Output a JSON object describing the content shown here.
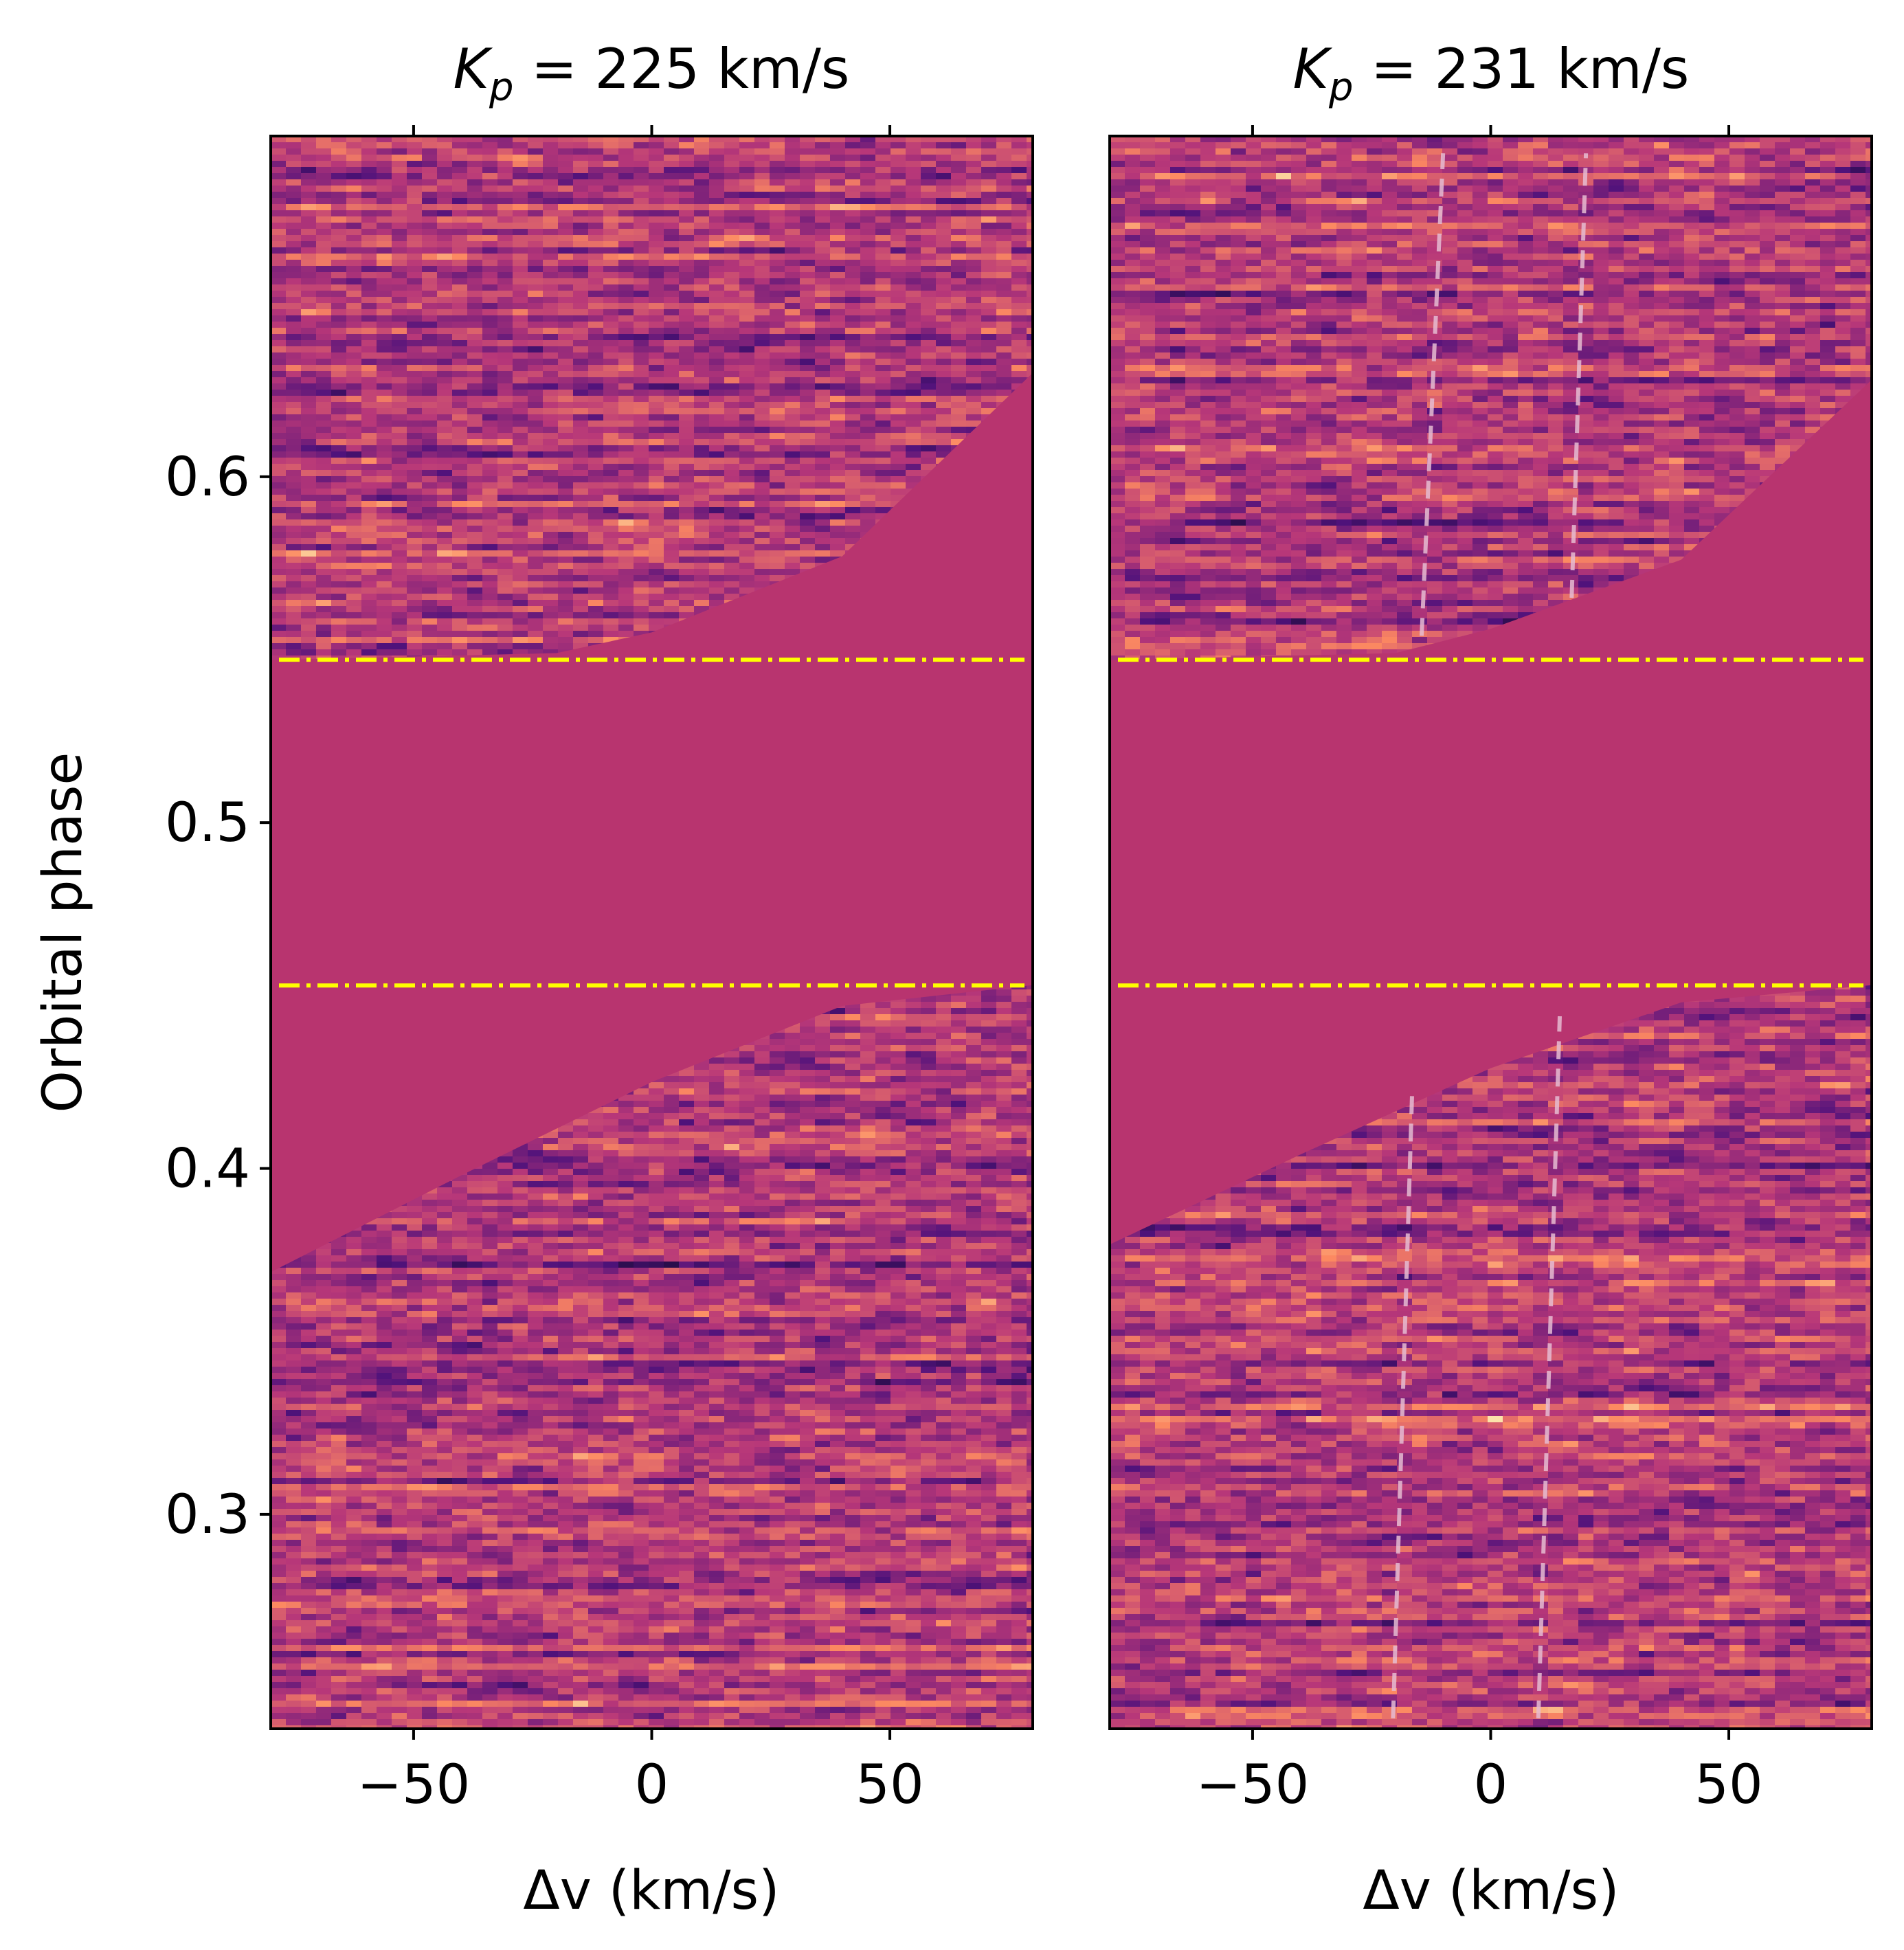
{
  "figure": {
    "ylabel": "Orbital phase",
    "colors": {
      "mask": "#b8346f",
      "eclipse_line": "#ffff00",
      "trail_line": "#e6bcd2",
      "colormap": "magma"
    }
  },
  "chart_data": [
    {
      "type": "heatmap",
      "title": "K_p = 225 km/s",
      "title_parts": {
        "symbol": "K",
        "subscript": "p",
        "rest": " = 225 km/s"
      },
      "xlabel": "Δv (km/s)",
      "ylabel": "Orbital phase",
      "xlim": [
        -80,
        80
      ],
      "ylim": [
        0.238,
        0.6985
      ],
      "xticks": [
        -50,
        0,
        50
      ],
      "xtick_labels": [
        "−50",
        "0",
        "50"
      ],
      "yticks": [
        0.3,
        0.4,
        0.5,
        0.6
      ],
      "ytick_labels": [
        "0.3",
        "0.4",
        "0.5",
        "0.6"
      ],
      "grid": false,
      "eclipse_phases": [
        0.4529,
        0.5471
      ],
      "masked_region": {
        "eclipse": [
          0.4529,
          0.5471
        ],
        "ingress_edge": [
          [
            -80,
            0.37
          ],
          [
            -40,
            0.398
          ],
          [
            0,
            0.425
          ],
          [
            40,
            0.447
          ],
          [
            80,
            0.453
          ]
        ],
        "egress_edge": [
          [
            -80,
            0.547
          ],
          [
            -20,
            0.549
          ],
          [
            0,
            0.555
          ],
          [
            40,
            0.577
          ],
          [
            80,
            0.63
          ]
        ]
      },
      "trail_lines": []
    },
    {
      "type": "heatmap",
      "title": "K_p = 231 km/s",
      "title_parts": {
        "symbol": "K",
        "subscript": "p",
        "rest": " = 231 km/s"
      },
      "xlabel": "Δv (km/s)",
      "ylabel": "",
      "xlim": [
        -80,
        80
      ],
      "ylim": [
        0.238,
        0.6985
      ],
      "xticks": [
        -50,
        0,
        50
      ],
      "xtick_labels": [
        "−50",
        "0",
        "50"
      ],
      "yticks": [],
      "ytick_labels": [],
      "grid": false,
      "eclipse_phases": [
        0.4529,
        0.5471
      ],
      "masked_region": {
        "eclipse": [
          0.4529,
          0.5471
        ],
        "ingress_edge": [
          [
            -80,
            0.378
          ],
          [
            -40,
            0.404
          ],
          [
            0,
            0.429
          ],
          [
            40,
            0.448
          ],
          [
            80,
            0.453
          ]
        ],
        "egress_edge": [
          [
            -80,
            0.547
          ],
          [
            -20,
            0.549
          ],
          [
            0,
            0.556
          ],
          [
            40,
            0.576
          ],
          [
            80,
            0.628
          ]
        ]
      },
      "trail_lines": [
        {
          "from": [
            -20.5,
            0.241
          ],
          "to": [
            -16.5,
            0.422
          ]
        },
        {
          "from": [
            10.0,
            0.241
          ],
          "to": [
            14.5,
            0.444
          ]
        },
        {
          "from": [
            -14.5,
            0.554
          ],
          "to": [
            -10.0,
            0.6935
          ]
        },
        {
          "from": [
            17.0,
            0.565
          ],
          "to": [
            20.0,
            0.6935
          ]
        }
      ]
    }
  ]
}
